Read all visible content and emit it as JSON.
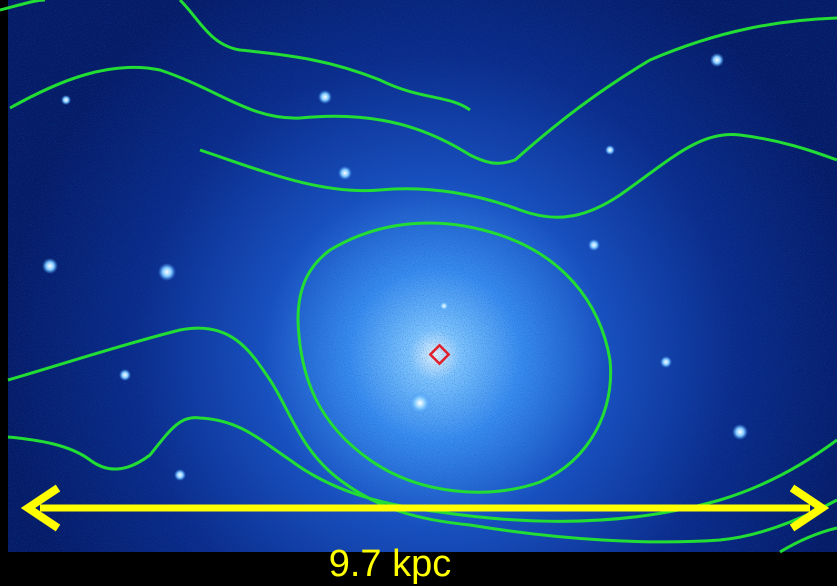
{
  "scale_bar": {
    "label": "9.7 kpc"
  }
}
